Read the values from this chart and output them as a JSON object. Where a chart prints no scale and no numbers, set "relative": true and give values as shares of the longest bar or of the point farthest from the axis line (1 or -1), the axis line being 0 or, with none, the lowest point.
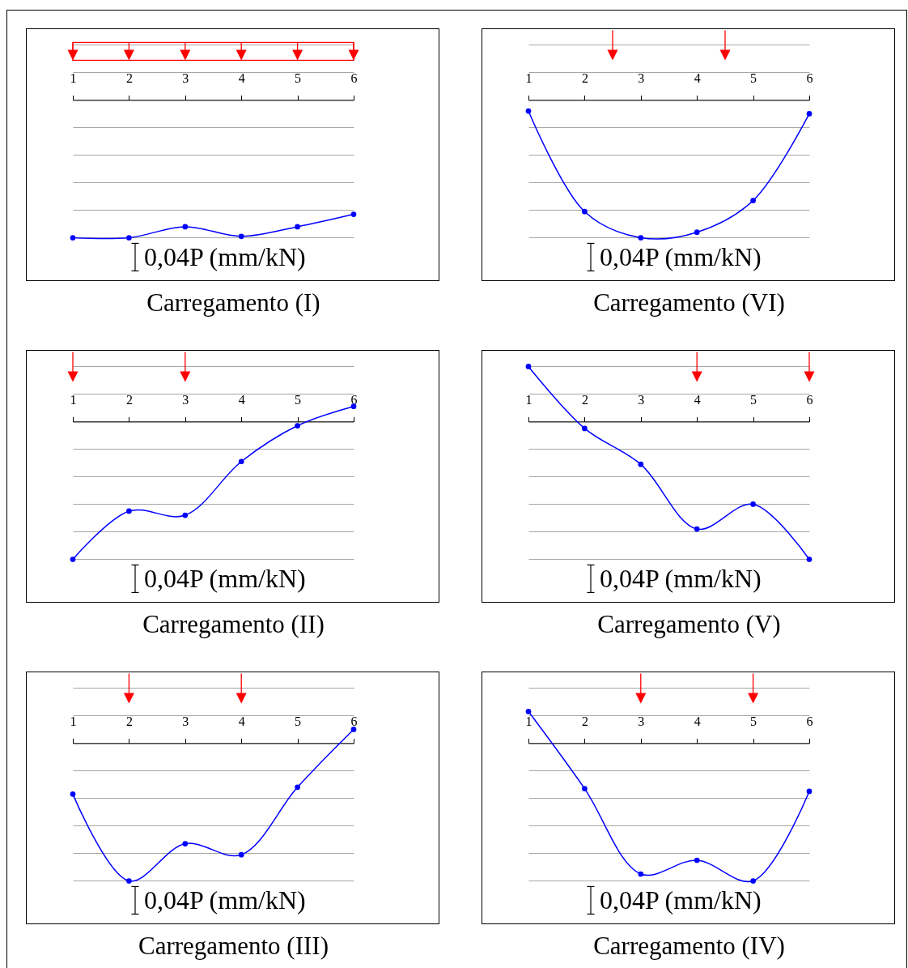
{
  "chart_data": [
    {
      "type": "line",
      "title": "Carregamento (I)",
      "x": [
        1,
        2,
        3,
        4,
        5,
        6
      ],
      "xlim": [
        1,
        6
      ],
      "xticks": [
        1,
        2,
        3,
        4,
        5,
        6
      ],
      "relative": true,
      "grid": "y",
      "marker": "circle",
      "series": [
        {
          "color": "#0000ff",
          "values": [
            -1,
            -1,
            -0.92,
            -0.99,
            -0.92,
            -0.83
          ]
        }
      ],
      "annotations": [
        "0,04P (mm/kN)"
      ]
    },
    {
      "type": "line",
      "title": "Carregamento (VI)",
      "x": [
        1,
        2,
        3,
        4,
        5,
        6
      ],
      "xlim": [
        1,
        6
      ],
      "xticks": [
        1,
        2,
        3,
        4,
        5,
        6
      ],
      "relative": true,
      "grid": "y",
      "marker": "circle",
      "series": [
        {
          "color": "#0000ff",
          "values": [
            -0.08,
            -0.81,
            -1,
            -0.96,
            -0.73,
            -0.1
          ]
        }
      ],
      "annotations": [
        "0,04P (mm/kN)"
      ]
    },
    {
      "type": "line",
      "title": "Carregamento (II)",
      "x": [
        1,
        2,
        3,
        4,
        5,
        6
      ],
      "xlim": [
        1,
        6
      ],
      "xticks": [
        1,
        2,
        3,
        4,
        5,
        6
      ],
      "relative": true,
      "grid": "y",
      "marker": "circle",
      "series": [
        {
          "color": "#0000ff",
          "values": [
            -1,
            -0.65,
            -0.68,
            -0.29,
            -0.03,
            0.11
          ]
        }
      ],
      "annotations": [
        "0,04P (mm/kN)"
      ]
    },
    {
      "type": "line",
      "title": "Carregamento (V)",
      "x": [
        1,
        2,
        3,
        4,
        5,
        6
      ],
      "xlim": [
        1,
        6
      ],
      "xticks": [
        1,
        2,
        3,
        4,
        5,
        6
      ],
      "relative": true,
      "grid": "y",
      "marker": "circle",
      "series": [
        {
          "color": "#0000ff",
          "values": [
            0.4,
            -0.05,
            -0.31,
            -0.78,
            -0.6,
            -1
          ]
        }
      ],
      "annotations": [
        "0,04P (mm/kN)"
      ]
    },
    {
      "type": "line",
      "title": "Carregamento (III)",
      "x": [
        1,
        2,
        3,
        4,
        5,
        6
      ],
      "xlim": [
        1,
        6
      ],
      "xticks": [
        1,
        2,
        3,
        4,
        5,
        6
      ],
      "relative": true,
      "grid": "y",
      "marker": "circle",
      "series": [
        {
          "color": "#0000ff",
          "values": [
            -0.37,
            -1,
            -0.73,
            -0.81,
            -0.32,
            0.1
          ]
        }
      ],
      "annotations": [
        "0,04P (mm/kN)"
      ]
    },
    {
      "type": "line",
      "title": "Carregamento (IV)",
      "x": [
        1,
        2,
        3,
        4,
        5,
        6
      ],
      "xlim": [
        1,
        6
      ],
      "xticks": [
        1,
        2,
        3,
        4,
        5,
        6
      ],
      "relative": true,
      "grid": "y",
      "marker": "circle",
      "series": [
        {
          "color": "#0000ff",
          "values": [
            0.23,
            -0.33,
            -0.95,
            -0.85,
            -1,
            -0.35
          ]
        }
      ],
      "annotations": [
        "0,04P (mm/kN)"
      ]
    }
  ]
}
